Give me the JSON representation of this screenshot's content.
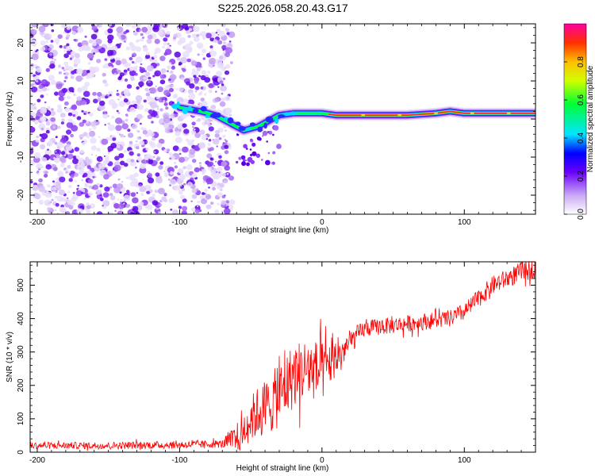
{
  "title": "S225.2026.058.20.43.G17",
  "chart_data": [
    {
      "type": "heatmap",
      "name": "spectrogram",
      "xlabel": "Height of straight line (km)",
      "ylabel": "Frequency (Hz)",
      "xlim": [
        -205,
        150
      ],
      "ylim": [
        -25,
        25
      ],
      "xticks": [
        -200,
        -100,
        0,
        100
      ],
      "xtick_labels": [
        "-200",
        "-100",
        "0",
        "100"
      ],
      "yticks": [
        -20,
        -10,
        0,
        10,
        20
      ],
      "ytick_labels": [
        "-20",
        "-10",
        "0",
        "10",
        "20"
      ],
      "noise_region_x": [
        -205,
        -63
      ],
      "ridge": {
        "x": [
          -100,
          -85,
          -75,
          -65,
          -55,
          -45,
          -40,
          -35,
          -30,
          -20,
          -10,
          0,
          10,
          20,
          40,
          60,
          80,
          90,
          100,
          120,
          150
        ],
        "freq_hz": [
          3,
          2,
          1,
          -1,
          -3,
          -2,
          -1,
          0,
          1,
          1.5,
          1.5,
          1.5,
          1,
          1,
          1,
          1,
          1.5,
          2,
          1.5,
          1.5,
          1.5
        ]
      },
      "colorbar": {
        "label": "Normalized spectral amplitude",
        "range": [
          0,
          1
        ],
        "ticks": [
          0.0,
          0.2,
          0.4,
          0.6,
          0.8
        ],
        "tick_labels": [
          "0.0",
          "0.2",
          "0.4",
          "0.6",
          "0.8"
        ]
      }
    },
    {
      "type": "line",
      "name": "snr",
      "color": "#ff0000",
      "xlabel": "Height of straight line (km)",
      "ylabel": "SNR (10 * v/v)",
      "xlim": [
        -205,
        150
      ],
      "ylim": [
        0,
        570
      ],
      "xticks": [
        -200,
        -100,
        0,
        100
      ],
      "xtick_labels": [
        "-200",
        "-100",
        "0",
        "100"
      ],
      "yticks": [
        0,
        100,
        200,
        300,
        400,
        500
      ],
      "ytick_labels": [
        "0",
        "100",
        "200",
        "300",
        "400",
        "500"
      ],
      "trend": {
        "x": [
          -205,
          -150,
          -100,
          -70,
          -60,
          -50,
          -45,
          -40,
          -35,
          -30,
          -20,
          -10,
          0,
          10,
          20,
          30,
          50,
          70,
          90,
          100,
          110,
          120,
          140,
          150
        ],
        "y": [
          20,
          20,
          22,
          25,
          40,
          100,
          120,
          130,
          150,
          170,
          230,
          250,
          240,
          280,
          330,
          370,
          380,
          390,
          400,
          420,
          460,
          500,
          540,
          550
        ]
      },
      "noise_amp": {
        "x": [
          -205,
          -70,
          -60,
          -40,
          -20,
          0,
          10,
          30,
          80,
          150
        ],
        "amp": [
          10,
          12,
          45,
          90,
          100,
          90,
          50,
          25,
          25,
          30
        ]
      }
    }
  ]
}
